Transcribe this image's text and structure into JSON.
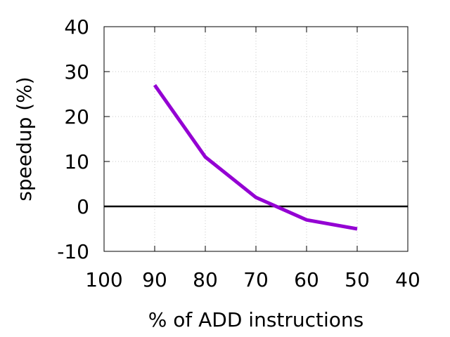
{
  "chart_data": {
    "type": "line",
    "title": "",
    "xlabel": "% of ADD instructions",
    "ylabel": "speedup (%)",
    "xlim": [
      100,
      40
    ],
    "ylim": [
      -10,
      40
    ],
    "x_reversed": true,
    "xticks": [
      100,
      90,
      80,
      70,
      60,
      50,
      40
    ],
    "yticks": [
      -10,
      0,
      10,
      20,
      30,
      40
    ],
    "grid": true,
    "legend": "none",
    "reference_line": {
      "y": 0,
      "color": "#000000"
    },
    "series": [
      {
        "color": "#9400d3",
        "x": [
          90,
          80,
          70,
          60,
          50
        ],
        "y": [
          27,
          11,
          2,
          -3,
          -5
        ]
      }
    ]
  }
}
